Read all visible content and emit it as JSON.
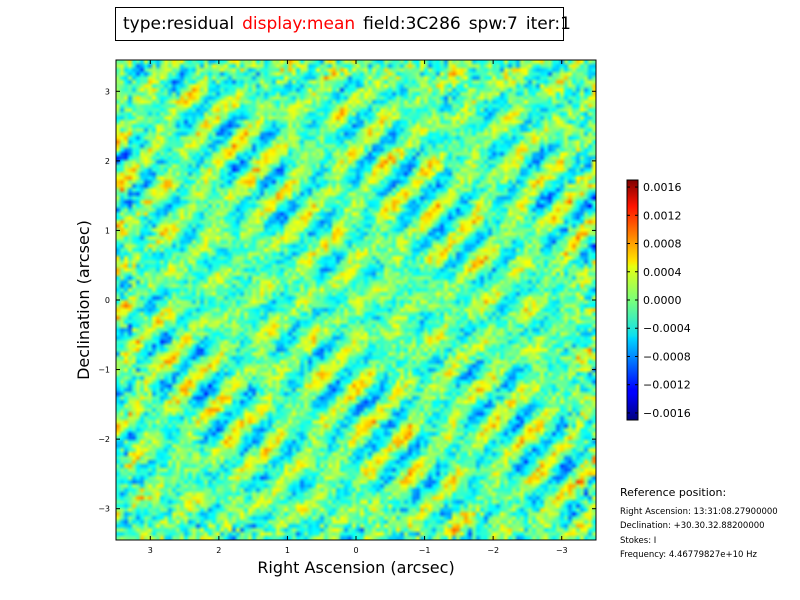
{
  "title": {
    "parts": [
      {
        "text": "type:residual",
        "highlight": false
      },
      {
        "text": "display:mean",
        "highlight": true
      },
      {
        "text": "field:3C286",
        "highlight": false
      },
      {
        "text": "spw:7",
        "highlight": false
      },
      {
        "text": "iter:1",
        "highlight": false
      }
    ],
    "highlight_color": "#ff0000"
  },
  "reference": {
    "title": "Reference position:",
    "lines": [
      "Right Ascension: 13:31:08.27900000",
      "Declination: +30.30.32.88200000",
      "Stokes: I",
      "Frequency: 4.46779827e+10 Hz"
    ]
  },
  "chart_data": {
    "type": "heatmap",
    "xlabel": "Right Ascension (arcsec)",
    "ylabel": "Declination (arcsec)",
    "xlim": [
      3.5,
      -3.5
    ],
    "ylim": [
      -3.45,
      3.45
    ],
    "xticks": [
      3,
      2,
      1,
      0,
      -1,
      -2,
      -3
    ],
    "xtick_labels": [
      "3",
      "2",
      "1",
      "0",
      "−1",
      "−2",
      "−3"
    ],
    "yticks": [
      3,
      2,
      1,
      0,
      -1,
      -2,
      -3
    ],
    "ytick_labels": [
      "3",
      "2",
      "1",
      "0",
      "−1",
      "−2",
      "−3"
    ],
    "colormap": "jet",
    "colorbar": {
      "range": [
        -0.0017,
        0.0017
      ],
      "ticks": [
        0.0016,
        0.0012,
        0.0008,
        0.0004,
        0.0,
        -0.0004,
        -0.0008,
        -0.0012,
        -0.0016
      ],
      "tick_labels": [
        "0.0016",
        "0.0012",
        "0.0008",
        "0.0004",
        "0.0000",
        "−0.0004",
        "−0.0008",
        "−0.0012",
        "−0.0016"
      ]
    },
    "value_summary": "diagonal residual stripe pattern centered near -0.0001, peaks reaching about +/-0.0016"
  }
}
